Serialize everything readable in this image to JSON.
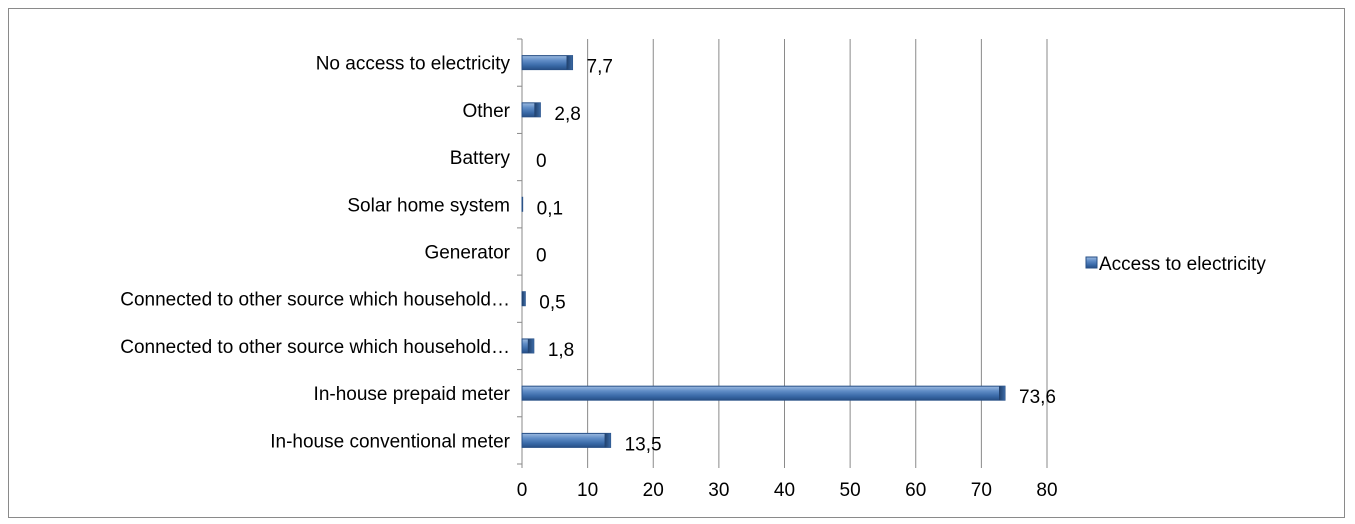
{
  "chart_data": {
    "type": "bar",
    "orientation": "horizontal",
    "title": "",
    "xlabel": "",
    "ylabel": "",
    "categories": [
      "No access to electricity",
      "Other",
      "Battery",
      "Solar home system",
      "Generator",
      "Connected to other source which household…",
      "Connected to other source which household…",
      "In-house prepaid meter",
      "In-house conventional meter"
    ],
    "value_labels": [
      "7,7",
      "2,8",
      "0",
      "0,1",
      "0",
      "0,5",
      "1,8",
      "73,6",
      "13,5"
    ],
    "series": [
      {
        "name": "Access to electricity",
        "values": [
          7.7,
          2.8,
          0,
          0.1,
          0,
          0.5,
          1.8,
          73.6,
          13.5
        ],
        "color": "#4f81bd"
      }
    ],
    "xlim": [
      0,
      80
    ],
    "xticks": [
      "0",
      "10",
      "20",
      "30",
      "40",
      "50",
      "60",
      "70",
      "80"
    ],
    "grid": true,
    "legend_position": "right"
  }
}
